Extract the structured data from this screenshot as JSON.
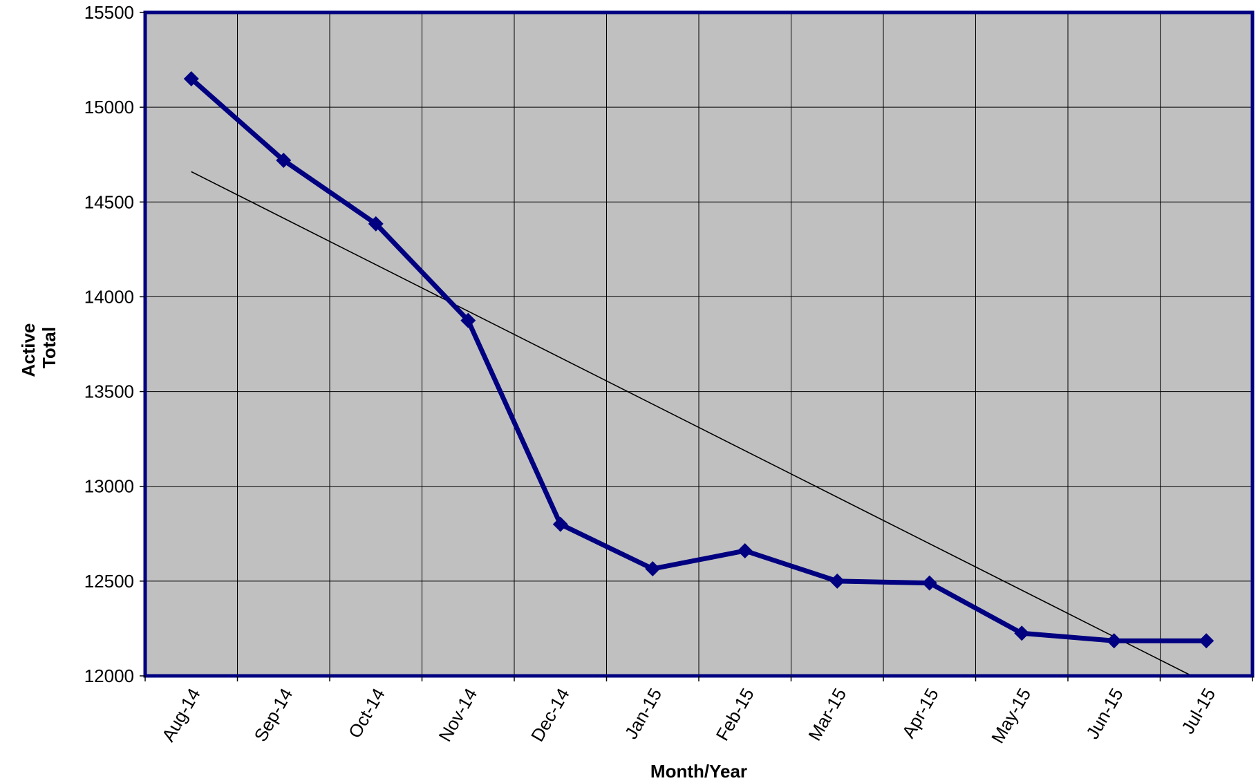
{
  "chart_data": {
    "type": "line",
    "title": "",
    "xlabel": "Month/Year",
    "ylabel_lines": [
      "Active",
      "Total"
    ],
    "categories": [
      "Aug-14",
      "Sep-14",
      "Oct-14",
      "Nov-14",
      "Dec-14",
      "Jan-15",
      "Feb-15",
      "Mar-15",
      "Apr-15",
      "May-15",
      "Jun-15",
      "Jul-15"
    ],
    "series": [
      {
        "values": [
          15150,
          14720,
          14385,
          13875,
          12800,
          12565,
          12660,
          12500,
          12490,
          12225,
          12185,
          12185
        ],
        "color": "#000080",
        "marker": "diamond"
      }
    ],
    "trendline": {
      "kind": "linear",
      "color": "#000000",
      "start": {
        "category_index": 0,
        "value": 14660
      },
      "slope_per_category": -245.33
    },
    "ylim": [
      12000,
      15500
    ],
    "ytick_step": 500,
    "grid": true,
    "legend": "none",
    "colors": {
      "plot_background": "#c0c0c0",
      "plot_border": "#000080",
      "gridlines": "#000000"
    }
  }
}
